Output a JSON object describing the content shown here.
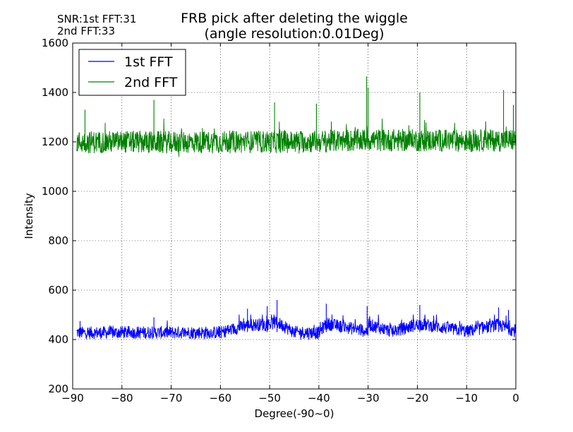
{
  "chart_data": {
    "type": "line",
    "title_line1": "FRB pick after deleting the wiggle",
    "title_line2": "(angle resolution:0.01Deg)",
    "annotations": [
      "SNR:1st FFT:31",
      "2nd FFT:33"
    ],
    "xlabel": "Degree(-90~0)",
    "ylabel": "Intensity",
    "xlim": [
      -90,
      0
    ],
    "ylim": [
      200,
      1600
    ],
    "xticks": [
      -90,
      -80,
      -70,
      -60,
      -50,
      -40,
      -30,
      -20,
      -10,
      0
    ],
    "xtick_labels": [
      "−90",
      "−80",
      "−70",
      "−60",
      "−50",
      "−40",
      "−30",
      "−20",
      "−10",
      "0"
    ],
    "yticks": [
      200,
      400,
      600,
      800,
      1000,
      1200,
      1400,
      1600
    ],
    "ytick_labels": [
      "200",
      "400",
      "600",
      "800",
      "1000",
      "1200",
      "1400",
      "1600"
    ],
    "grid": true,
    "legend_position": "top-left",
    "series": [
      {
        "name": "1st FFT",
        "color": "#0000ff",
        "baseline": 430,
        "noise": 25,
        "min": 380,
        "max": 500,
        "points": [
          [
            -89,
            420
          ],
          [
            -80,
            425
          ],
          [
            -70,
            425
          ],
          [
            -60,
            425
          ],
          [
            -54.5,
            525
          ],
          [
            -50.5,
            535
          ],
          [
            -48.5,
            560
          ],
          [
            -45,
            430
          ],
          [
            -40,
            420
          ],
          [
            -38.5,
            545
          ],
          [
            -30,
            440
          ],
          [
            -30.2,
            535
          ],
          [
            -25,
            440
          ],
          [
            -19.5,
            540
          ],
          [
            -10,
            440
          ],
          [
            -3.5,
            530
          ],
          [
            0,
            440
          ]
        ],
        "spikes": [
          [
            -88.5,
            475
          ],
          [
            -73.5,
            490
          ],
          [
            -54.5,
            525
          ],
          [
            -50.5,
            535
          ],
          [
            -48.5,
            560
          ],
          [
            -38.5,
            545
          ],
          [
            -30.2,
            535
          ],
          [
            -19.5,
            540
          ],
          [
            -3.5,
            530
          ],
          [
            -1.5,
            520
          ]
        ]
      },
      {
        "name": "2nd FFT",
        "color": "#008000",
        "baseline": 1200,
        "noise": 45,
        "min": 1110,
        "max": 1340,
        "points": [
          [
            -89,
            1195
          ],
          [
            -80,
            1200
          ],
          [
            -70,
            1195
          ],
          [
            -60,
            1200
          ],
          [
            -50,
            1200
          ],
          [
            -40,
            1205
          ],
          [
            -30,
            1225
          ],
          [
            -20,
            1220
          ],
          [
            -10,
            1215
          ],
          [
            0,
            1225
          ]
        ],
        "spikes": [
          [
            -87.5,
            1330
          ],
          [
            -73.5,
            1370
          ],
          [
            -49,
            1360
          ],
          [
            -40.5,
            1355
          ],
          [
            -30.3,
            1465
          ],
          [
            -30.0,
            1420
          ],
          [
            -19.5,
            1400
          ],
          [
            -2.5,
            1410
          ],
          [
            -0.5,
            1350
          ]
        ]
      }
    ]
  }
}
